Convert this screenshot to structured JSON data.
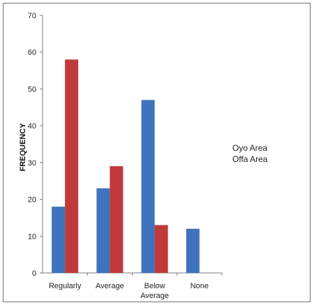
{
  "chart_data": {
    "type": "bar",
    "title": "",
    "xlabel": "",
    "ylabel": "FREQUENCY",
    "categories": [
      [
        "Regularly"
      ],
      [
        "Average"
      ],
      [
        "Below",
        "Average"
      ],
      [
        "None"
      ]
    ],
    "series": [
      {
        "name": "Oyo Area",
        "color": "#3f73bd",
        "values": [
          18,
          23,
          47,
          12
        ]
      },
      {
        "name": "Offa Area",
        "color": "#c0393b",
        "values": [
          58,
          29,
          13,
          0
        ]
      }
    ],
    "ylim": [
      0,
      70
    ],
    "yticks": [
      0,
      10,
      20,
      30,
      40,
      50,
      60,
      70
    ],
    "grid": false,
    "legend_position": "right"
  }
}
